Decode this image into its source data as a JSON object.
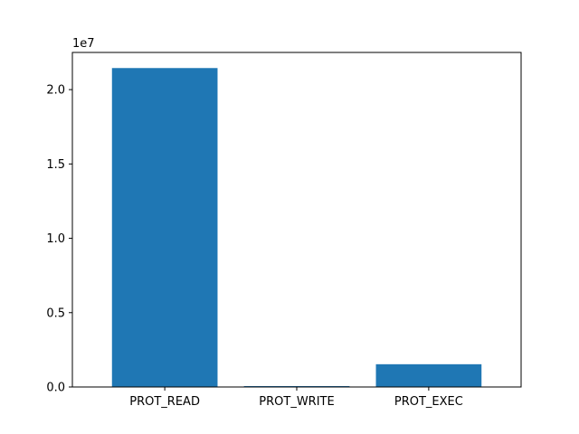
{
  "chart_data": {
    "type": "bar",
    "categories": [
      "PROT_READ",
      "PROT_WRITE",
      "PROT_EXEC"
    ],
    "values": [
      21450000,
      60000,
      1530000
    ],
    "ylim": [
      0,
      22500000
    ],
    "yticks": [
      0,
      5000000,
      10000000,
      15000000,
      20000000
    ],
    "ytick_labels": [
      "0.0",
      "0.5",
      "1.0",
      "1.5",
      "2.0"
    ],
    "y_offset_label": "1e7",
    "title": "",
    "xlabel": "",
    "ylabel": "",
    "grid": false,
    "bar_color": "#1f77b4"
  }
}
